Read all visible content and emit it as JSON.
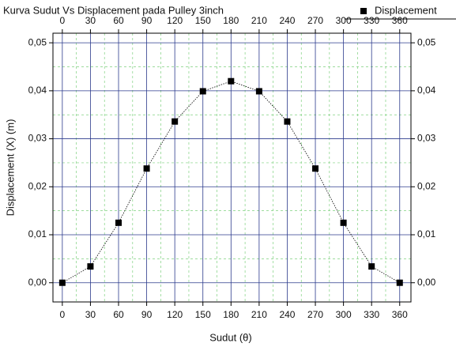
{
  "chart_data": {
    "type": "line",
    "title": "Kurva Sudut Vs Displacement pada Pulley 3inch",
    "x_label": "Sudut (θ)",
    "y_label": "Displacement (X) (m)",
    "x": [
      0,
      30,
      60,
      90,
      120,
      150,
      180,
      210,
      240,
      270,
      300,
      330,
      360
    ],
    "series": [
      {
        "name": "Displacement",
        "color": "#000000",
        "values": [
          0,
          0.0034,
          0.0125,
          0.0238,
          0.0336,
          0.0399,
          0.042,
          0.0399,
          0.0336,
          0.0238,
          0.0125,
          0.0034,
          0
        ]
      }
    ],
    "xlim": [
      -10,
      372
    ],
    "ylim": [
      -0.004,
      0.052
    ],
    "xticks": [
      0,
      30,
      60,
      90,
      120,
      150,
      180,
      210,
      240,
      270,
      300,
      330,
      360
    ],
    "yticks": [
      {
        "value": 0,
        "label": "0,00"
      },
      {
        "value": 0.01,
        "label": "0,01"
      },
      {
        "value": 0.02,
        "label": "0,02"
      },
      {
        "value": 0.03,
        "label": "0,03"
      },
      {
        "value": 0.04,
        "label": "0,04"
      },
      {
        "value": 0.05,
        "label": "0,05"
      }
    ],
    "grid": true,
    "legend": "top-right"
  }
}
